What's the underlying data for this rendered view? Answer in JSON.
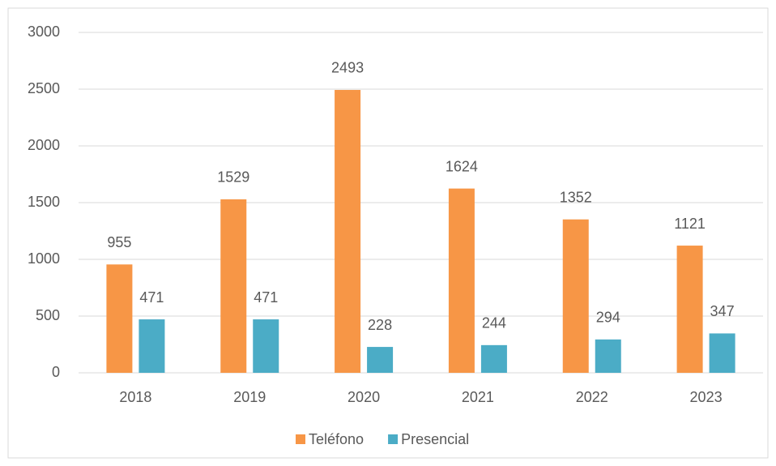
{
  "chart_data": {
    "type": "bar",
    "categories": [
      "2018",
      "2019",
      "2020",
      "2021",
      "2022",
      "2023"
    ],
    "series": [
      {
        "name": "Teléfono",
        "color": "#f79646",
        "values": [
          955,
          1529,
          2493,
          1624,
          1352,
          1121
        ]
      },
      {
        "name": "Presencial",
        "color": "#4bacc6",
        "values": [
          471,
          471,
          228,
          244,
          294,
          347
        ]
      }
    ],
    "ylim": [
      0,
      3000
    ],
    "yticks": [
      0,
      500,
      1000,
      1500,
      2000,
      2500,
      3000
    ],
    "grid": true,
    "legend": "bottom"
  }
}
